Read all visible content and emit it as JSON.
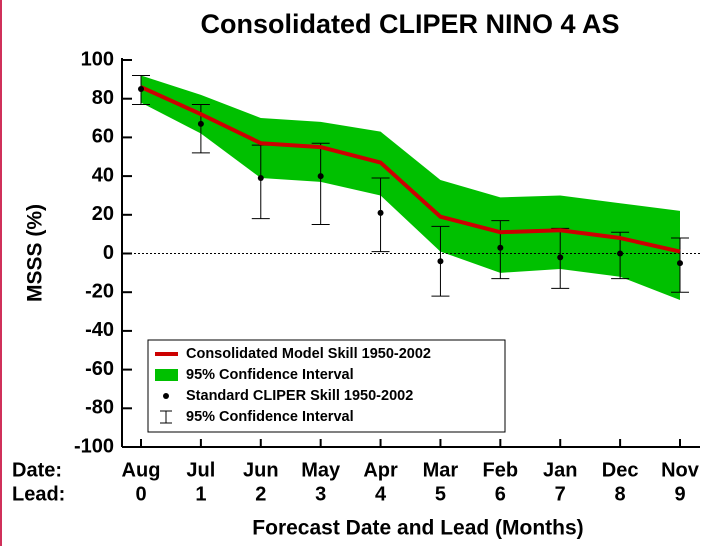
{
  "chart_data": {
    "type": "line",
    "title": "Consolidated CLIPER NINO 4 AS",
    "x_label": "Forecast Date and Lead (Months)",
    "y_label": "MSSS (%)",
    "date_label": "Date:",
    "lead_label": "Lead:",
    "categories": [
      "Aug",
      "Jul",
      "Jun",
      "May",
      "Apr",
      "Mar",
      "Feb",
      "Jan",
      "Dec",
      "Nov"
    ],
    "leads": [
      0,
      1,
      2,
      3,
      4,
      5,
      6,
      7,
      8,
      9
    ],
    "ylim": [
      -100,
      100
    ],
    "yticks": [
      -100,
      -80,
      -60,
      -40,
      -20,
      0,
      20,
      40,
      60,
      80,
      100
    ],
    "zero_line": true,
    "series": [
      {
        "name": "Consolidated Model Skill 1950-2002",
        "color": "#cc0000",
        "kind": "line",
        "values": [
          86,
          72,
          57,
          55,
          47,
          19,
          11,
          12,
          8,
          1
        ]
      },
      {
        "name": "95% Confidence Interval",
        "color": "#00c000",
        "kind": "band",
        "upper": [
          92,
          82,
          70,
          68,
          63,
          38,
          29,
          30,
          26,
          22
        ],
        "lower": [
          78,
          62,
          39,
          37,
          30,
          1,
          -10,
          -8,
          -12,
          -24
        ]
      },
      {
        "name": "Standard CLIPER Skill 1950-2002",
        "color": "#000000",
        "kind": "dots",
        "values": [
          85,
          67,
          39,
          40,
          21,
          -4,
          3,
          -2,
          0,
          -5
        ]
      },
      {
        "name": "95% Confidence Interval",
        "color": "#000000",
        "kind": "errorbar",
        "upper": [
          92,
          77,
          56,
          57,
          39,
          14,
          17,
          13,
          11,
          8
        ],
        "lower": [
          77,
          52,
          18,
          15,
          1,
          -22,
          -13,
          -18,
          -13,
          -20
        ]
      }
    ]
  }
}
